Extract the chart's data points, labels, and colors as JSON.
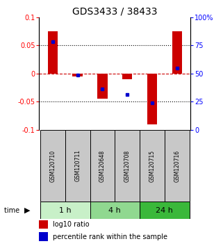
{
  "title": "GDS3433 / 38433",
  "samples": [
    "GSM120710",
    "GSM120711",
    "GSM120648",
    "GSM120708",
    "GSM120715",
    "GSM120716"
  ],
  "groups": [
    {
      "label": "1 h",
      "indices": [
        0,
        1
      ],
      "color": "#c8f0c8"
    },
    {
      "label": "4 h",
      "indices": [
        2,
        3
      ],
      "color": "#90d890"
    },
    {
      "label": "24 h",
      "indices": [
        4,
        5
      ],
      "color": "#3ab83a"
    }
  ],
  "log10_ratio": [
    0.075,
    -0.005,
    -0.045,
    -0.01,
    -0.09,
    0.075
  ],
  "percentile_rank": [
    0.78,
    0.485,
    0.36,
    0.31,
    0.24,
    0.55
  ],
  "ylim": [
    -0.1,
    0.1
  ],
  "yticks_left": [
    -0.1,
    -0.05,
    0,
    0.05,
    0.1
  ],
  "yticks_right": [
    0,
    25,
    50,
    75,
    100
  ],
  "bar_color": "#cc0000",
  "dot_color": "#0000cc",
  "zero_line_color": "#cc0000",
  "grid_color": "#000000",
  "sample_bg": "#c8c8c8",
  "title_fontsize": 10,
  "tick_fontsize": 7,
  "sample_fontsize": 5.5,
  "group_label_fontsize": 8,
  "legend_fontsize": 7
}
